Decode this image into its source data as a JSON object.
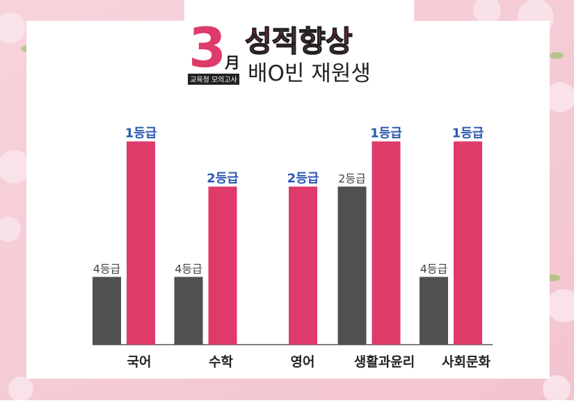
{
  "header": {
    "month_number": "3",
    "month_char": "月",
    "badge": "교육청 모의고사",
    "headline": "성적향상",
    "subheadline": "배O빈 재원생"
  },
  "chart_data": {
    "type": "bar",
    "categories": [
      "국어",
      "수학",
      "영어",
      "생활과윤리",
      "사회문화"
    ],
    "series": [
      {
        "color": "#505050",
        "values": [
          4,
          4,
          null,
          2,
          4
        ],
        "value_labels": [
          "4등급",
          "4등급",
          null,
          "2등급",
          "4등급"
        ]
      },
      {
        "color": "#de3a6a",
        "values": [
          1,
          2,
          2,
          1,
          1
        ],
        "value_labels": [
          "1등급",
          "2등급",
          "2등급",
          "1등급",
          "1등급"
        ]
      }
    ]
  }
}
